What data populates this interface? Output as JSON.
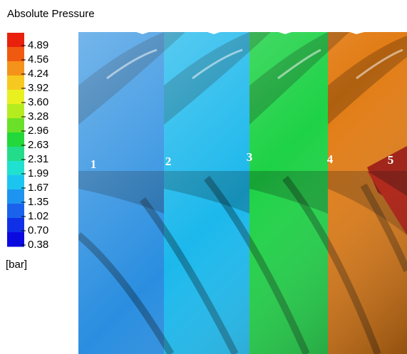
{
  "legend": {
    "title": "Absolute Pressure",
    "ticks": [
      "4.89",
      "4.56",
      "4.24",
      "3.92",
      "3.60",
      "3.28",
      "2.96",
      "2.63",
      "2.31",
      "1.99",
      "1.67",
      "1.35",
      "1.02",
      "0.70",
      "0.38"
    ],
    "unit": "[bar]"
  },
  "chamber_labels": [
    "1",
    "2",
    "3",
    "4",
    "5"
  ]
}
